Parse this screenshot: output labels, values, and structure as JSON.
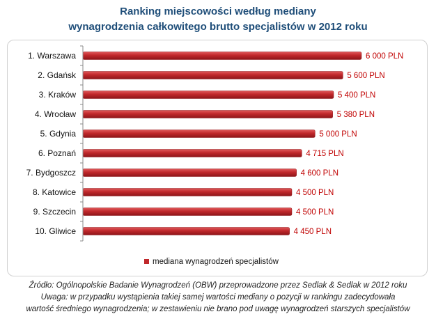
{
  "title_lines": [
    "Ranking miejscowości według mediany",
    "wynagrodzenia całkowitego brutto specjalistów w 2012 roku"
  ],
  "notes": [
    "Źródło: Ogólnopolskie Badanie Wynagrodzeń (OBW) przeprowadzone przez Sedlak & Sedlak w 2012 roku",
    "Uwaga: w przypadku wystąpienia takiej samej wartości mediany o pozycji w rankingu zadecydowała",
    "wartość średniego wynagrodzenia; w zestawieniu nie brano pod uwagę wynagrodzeń starszych specjalistów"
  ],
  "colors": {
    "bar": "#c0282b",
    "bar_light": "#e0595b",
    "bar_dark": "#8e1519",
    "label": "#c00000",
    "title": "#1f4e79"
  },
  "chart_data": {
    "type": "bar",
    "orientation": "horizontal",
    "categories": [
      "1. Warszawa",
      "2. Gdańsk",
      "3. Kraków",
      "4. Wrocław",
      "5. Gdynia",
      "6. Poznań",
      "7. Bydgoszcz",
      "8. Katowice",
      "9. Szczecin",
      "10. Gliwice"
    ],
    "series": [
      {
        "name": "mediana wynagrodzeń specjalistów",
        "values": [
          6000,
          5600,
          5400,
          5380,
          5000,
          4715,
          4600,
          4500,
          4500,
          4450
        ]
      }
    ],
    "data_labels": [
      "6 000 PLN",
      "5 600 PLN",
      "5 400 PLN",
      "5 380 PLN",
      "5 000 PLN",
      "4 715 PLN",
      "4 600 PLN",
      "4 500 PLN",
      "4 500 PLN",
      "4 450 PLN"
    ],
    "xlim": [
      0,
      6000
    ],
    "grid": false,
    "legend": "bottom"
  }
}
